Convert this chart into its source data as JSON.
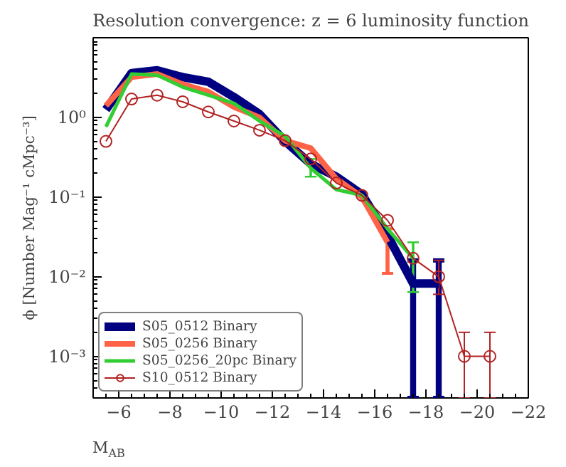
{
  "chart_data": {
    "type": "line",
    "title": "Resolution convergence: z = 6 luminosity function",
    "xlabel": "M$_{AB}$",
    "ylabel": "ϕ [Number Mag⁻¹ cMpc⁻³]",
    "log": "y",
    "xlim": [
      -5,
      -22
    ],
    "xticks": [
      {
        "value": -6,
        "label": "−6"
      },
      {
        "value": -8,
        "label": "−8"
      },
      {
        "value": -10,
        "label": "−10"
      },
      {
        "value": -12,
        "label": "−12"
      },
      {
        "value": -14,
        "label": "−14"
      },
      {
        "value": -16,
        "label": "−16"
      },
      {
        "value": -18,
        "label": "−18"
      },
      {
        "value": -20,
        "label": "−20"
      },
      {
        "value": -22,
        "label": "−22"
      }
    ],
    "ylim": [
      0.0003,
      10
    ],
    "yticks": [
      {
        "value": 0.001,
        "label": "10⁻³"
      },
      {
        "value": 0.01,
        "label": "10⁻²"
      },
      {
        "value": 0.1,
        "label": "10⁻¹"
      },
      {
        "value": 1,
        "label": "10⁰"
      }
    ],
    "grid": false,
    "legend": "bottom left",
    "series": [
      {
        "name": "S05_0512 Binary",
        "color": "#000080",
        "marker": "none",
        "x": [
          -5.5,
          -6.5,
          -7.5,
          -8.5,
          -9.5,
          -10.5,
          -11.5,
          -12.5,
          -13.5,
          -14.5,
          -15.5,
          -16.5,
          -17.5,
          -18.5
        ],
        "values": [
          1.25,
          3.6,
          3.9,
          3.2,
          2.8,
          1.8,
          1.1,
          0.5,
          0.26,
          0.18,
          0.108,
          0.033,
          0.0082,
          0.0082
        ],
        "errors": [
          null,
          null,
          null,
          null,
          null,
          null,
          null,
          null,
          null,
          null,
          null,
          null,
          [
            0.0003,
            0.016
          ],
          [
            0.0003,
            0.016
          ]
        ]
      },
      {
        "name": "S05_0256 Binary",
        "color": "#ff6347",
        "marker": "none",
        "x": [
          -5.5,
          -6.5,
          -7.5,
          -8.5,
          -9.5,
          -10.5,
          -11.5,
          -12.5,
          -13.5,
          -14.5,
          -15.5,
          -16.5
        ],
        "values": [
          1.4,
          3.2,
          3.5,
          2.6,
          2.1,
          1.35,
          1.0,
          0.51,
          0.41,
          0.17,
          0.1,
          0.027
        ],
        "errors": [
          null,
          null,
          null,
          null,
          null,
          null,
          null,
          null,
          null,
          null,
          null,
          [
            0.011,
            0.04
          ]
        ]
      },
      {
        "name": "S05_0256_20pc Binary",
        "color": "#32cd32",
        "marker": "none",
        "x": [
          -5.5,
          -6.5,
          -7.5,
          -8.5,
          -9.5,
          -10.5,
          -11.5,
          -12.5,
          -13.5,
          -14.5,
          -15.5,
          -16.5,
          -17.5
        ],
        "values": [
          0.76,
          3.5,
          3.4,
          2.4,
          1.9,
          1.5,
          0.9,
          0.58,
          0.23,
          0.124,
          0.105,
          0.04,
          0.017
        ],
        "errors": [
          null,
          null,
          null,
          null,
          null,
          null,
          null,
          null,
          [
            0.18,
            0.3
          ],
          null,
          null,
          null,
          [
            0.0064,
            0.027
          ]
        ]
      },
      {
        "name": "S10_0512 Binary",
        "color": "#b22222",
        "marker": "circle",
        "x": [
          -5.5,
          -6.5,
          -7.5,
          -8.5,
          -9.5,
          -10.5,
          -11.5,
          -12.5,
          -13.5,
          -14.5,
          -15.5,
          -16.5,
          -17.5,
          -18.5,
          -19.5,
          -20.5
        ],
        "values": [
          0.5,
          1.7,
          1.9,
          1.57,
          1.17,
          0.9,
          0.69,
          0.51,
          0.3,
          0.15,
          0.105,
          0.051,
          0.017,
          0.01,
          0.001,
          0.001
        ],
        "errors": [
          null,
          null,
          null,
          null,
          null,
          null,
          null,
          null,
          null,
          null,
          null,
          null,
          null,
          [
            0.006,
            0.016
          ],
          [
            0.0003,
            0.002
          ],
          [
            0.0003,
            0.002
          ]
        ]
      }
    ]
  }
}
